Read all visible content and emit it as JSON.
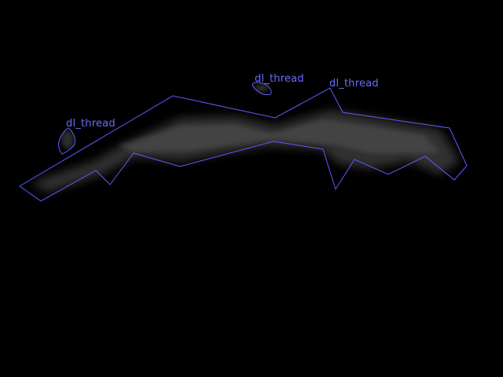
{
  "image": {
    "background_color": "#000000",
    "texture_color": "#5a5a5a"
  },
  "annotation": {
    "outline_color": "#5a5cff",
    "label_color": "#6a6cff"
  },
  "regions": [
    {
      "label": "dl_thread"
    },
    {
      "label": "dl_thread"
    },
    {
      "label": "dl_thread"
    }
  ]
}
